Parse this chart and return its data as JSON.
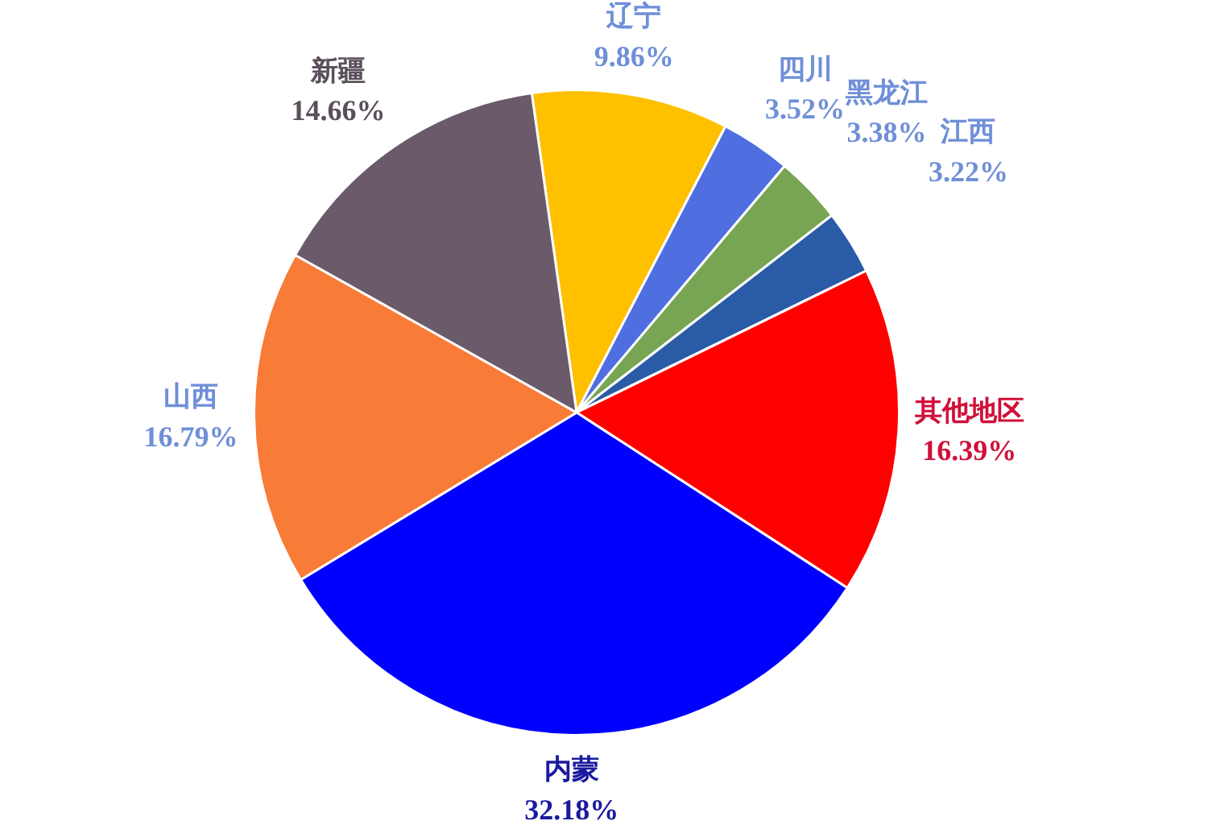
{
  "chart_data": {
    "type": "pie",
    "categories": [
      "辽宁",
      "四川",
      "黑龙江",
      "江西",
      "其他地区",
      "内蒙",
      "山西",
      "新疆"
    ],
    "values": [
      9.86,
      3.52,
      3.38,
      3.22,
      16.39,
      32.18,
      16.79,
      14.66
    ],
    "colors": [
      "#ffc000",
      "#4f6fe0",
      "#77a553",
      "#2a5ba6",
      "#ff0000",
      "#0000ff",
      "#f87b37",
      "#6a5a6a"
    ],
    "value_labels": [
      "9.86%",
      "3.52%",
      "3.38%",
      "3.22%",
      "16.39%",
      "32.18%",
      "16.79%",
      "14.66%"
    ]
  }
}
